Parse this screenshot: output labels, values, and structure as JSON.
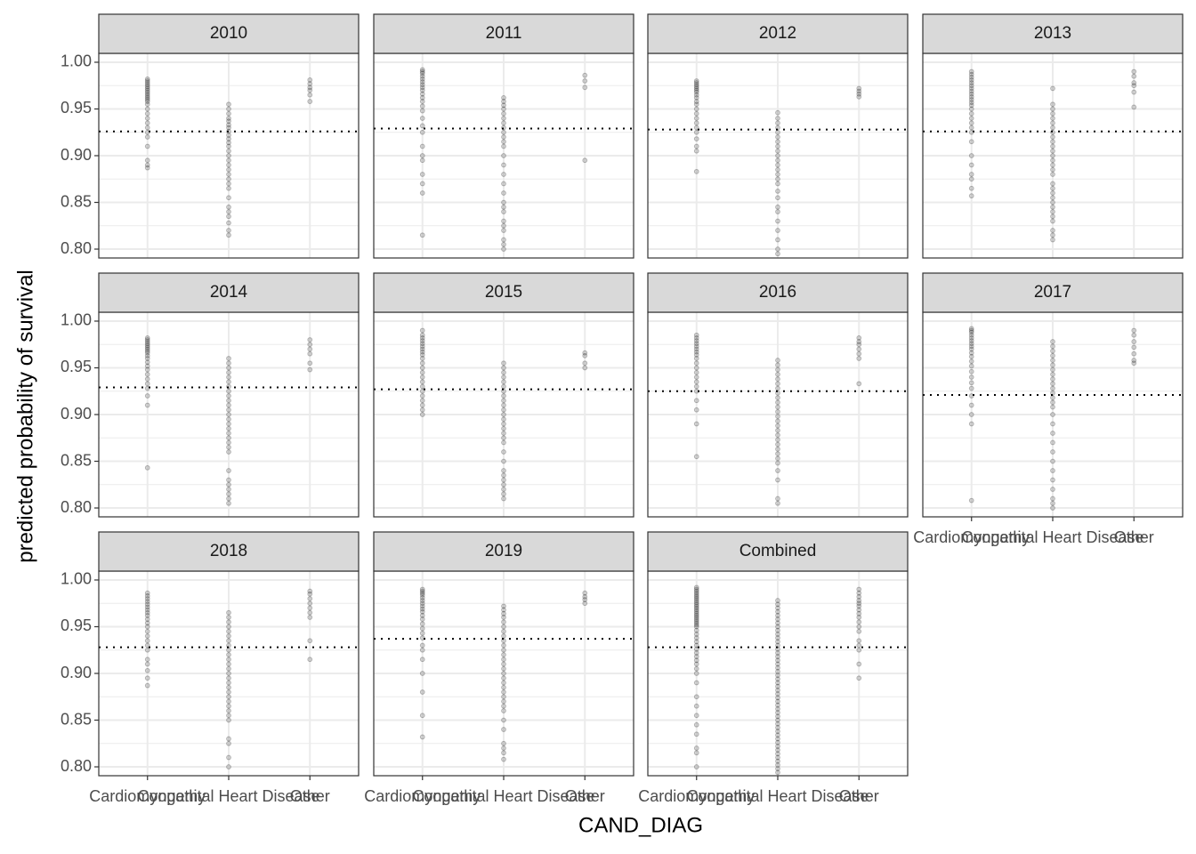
{
  "ylabel": "predicted probability of survival",
  "xlabel": "CAND_DIAG",
  "categories": [
    "Cardiomyopathy",
    "Congenital Heart Disease",
    "Other"
  ],
  "ylim": [
    0.7905,
    1.0095
  ],
  "yticks": [
    {
      "value": 0.8,
      "label": "0.80"
    },
    0.85,
    {
      "value": 0.9,
      "label": "0.90"
    },
    0.95,
    {
      "value": 1.0,
      "label": "1.00"
    }
  ],
  "y_minor_ticks": [
    0.825,
    0.875,
    0.925,
    0.975
  ],
  "chart_data": [
    {
      "type": "strip",
      "title": "2010",
      "hline": 0.926,
      "values": [
        [
          0.982,
          0.98,
          0.978,
          0.976,
          0.974,
          0.972,
          0.97,
          0.968,
          0.966,
          0.964,
          0.962,
          0.96,
          0.958,
          0.955,
          0.95,
          0.945,
          0.94,
          0.935,
          0.93,
          0.925,
          0.92,
          0.91,
          0.895,
          0.89,
          0.887
        ],
        [
          0.955,
          0.95,
          0.945,
          0.94,
          0.937,
          0.933,
          0.93,
          0.926,
          0.922,
          0.918,
          0.914,
          0.91,
          0.905,
          0.9,
          0.895,
          0.89,
          0.885,
          0.88,
          0.875,
          0.87,
          0.865,
          0.855,
          0.845,
          0.84,
          0.835,
          0.828,
          0.82,
          0.815
        ],
        [
          0.981,
          0.977,
          0.973,
          0.97,
          0.965,
          0.958
        ]
      ]
    },
    {
      "type": "strip",
      "title": "2011",
      "hline": 0.929,
      "values": [
        [
          0.992,
          0.99,
          0.988,
          0.985,
          0.982,
          0.979,
          0.976,
          0.973,
          0.97,
          0.966,
          0.962,
          0.958,
          0.953,
          0.948,
          0.94,
          0.932,
          0.925,
          0.91,
          0.9,
          0.895,
          0.88,
          0.87,
          0.86,
          0.815
        ],
        [
          0.962,
          0.958,
          0.954,
          0.95,
          0.945,
          0.94,
          0.935,
          0.93,
          0.925,
          0.92,
          0.915,
          0.91,
          0.9,
          0.89,
          0.88,
          0.87,
          0.86,
          0.85,
          0.845,
          0.84,
          0.83,
          0.825,
          0.82,
          0.81,
          0.805,
          0.8
        ],
        [
          0.986,
          0.98,
          0.973,
          0.895
        ]
      ]
    },
    {
      "type": "strip",
      "title": "2012",
      "hline": 0.928,
      "values": [
        [
          0.98,
          0.978,
          0.976,
          0.974,
          0.972,
          0.97,
          0.968,
          0.965,
          0.962,
          0.958,
          0.955,
          0.95,
          0.945,
          0.94,
          0.935,
          0.93,
          0.925,
          0.918,
          0.91,
          0.905,
          0.883
        ],
        [
          0.946,
          0.94,
          0.935,
          0.93,
          0.925,
          0.92,
          0.915,
          0.91,
          0.905,
          0.9,
          0.895,
          0.89,
          0.885,
          0.88,
          0.875,
          0.87,
          0.862,
          0.855,
          0.845,
          0.84,
          0.83,
          0.82,
          0.81,
          0.8,
          0.795
        ],
        [
          0.972,
          0.969,
          0.966,
          0.963
        ]
      ]
    },
    {
      "type": "strip",
      "title": "2013",
      "hline": 0.926,
      "values": [
        [
          0.99,
          0.987,
          0.984,
          0.981,
          0.978,
          0.975,
          0.972,
          0.969,
          0.966,
          0.963,
          0.96,
          0.957,
          0.954,
          0.95,
          0.945,
          0.94,
          0.935,
          0.93,
          0.925,
          0.915,
          0.9,
          0.89,
          0.88,
          0.875,
          0.865,
          0.857
        ],
        [
          0.972,
          0.955,
          0.95,
          0.945,
          0.94,
          0.935,
          0.93,
          0.925,
          0.92,
          0.915,
          0.91,
          0.905,
          0.9,
          0.895,
          0.89,
          0.885,
          0.88,
          0.87,
          0.865,
          0.86,
          0.855,
          0.85,
          0.845,
          0.84,
          0.835,
          0.83,
          0.82,
          0.815,
          0.81
        ],
        [
          0.99,
          0.985,
          0.978,
          0.975,
          0.968,
          0.952
        ]
      ]
    },
    {
      "type": "strip",
      "title": "2014",
      "hline": 0.929,
      "values": [
        [
          0.982,
          0.98,
          0.978,
          0.976,
          0.974,
          0.972,
          0.97,
          0.968,
          0.966,
          0.963,
          0.96,
          0.956,
          0.952,
          0.948,
          0.943,
          0.938,
          0.933,
          0.928,
          0.92,
          0.91,
          0.843
        ],
        [
          0.96,
          0.955,
          0.95,
          0.945,
          0.94,
          0.935,
          0.93,
          0.925,
          0.92,
          0.915,
          0.91,
          0.905,
          0.9,
          0.895,
          0.89,
          0.885,
          0.88,
          0.875,
          0.87,
          0.865,
          0.86,
          0.84,
          0.83,
          0.825,
          0.82,
          0.815,
          0.81,
          0.805
        ],
        [
          0.98,
          0.975,
          0.97,
          0.965,
          0.955,
          0.948
        ]
      ]
    },
    {
      "type": "strip",
      "title": "2015",
      "hline": 0.927,
      "values": [
        [
          0.99,
          0.985,
          0.982,
          0.979,
          0.976,
          0.973,
          0.97,
          0.967,
          0.964,
          0.96,
          0.955,
          0.95,
          0.945,
          0.94,
          0.935,
          0.93,
          0.925,
          0.92,
          0.915,
          0.91,
          0.905,
          0.9
        ],
        [
          0.955,
          0.95,
          0.945,
          0.94,
          0.935,
          0.93,
          0.925,
          0.92,
          0.915,
          0.91,
          0.905,
          0.9,
          0.895,
          0.89,
          0.885,
          0.88,
          0.875,
          0.87,
          0.86,
          0.85,
          0.84,
          0.835,
          0.83,
          0.825,
          0.82,
          0.815,
          0.81
        ],
        [
          0.966,
          0.963,
          0.955,
          0.95
        ]
      ]
    },
    {
      "type": "strip",
      "title": "2016",
      "hline": 0.925,
      "values": [
        [
          0.985,
          0.982,
          0.979,
          0.976,
          0.973,
          0.97,
          0.967,
          0.964,
          0.96,
          0.955,
          0.95,
          0.945,
          0.94,
          0.935,
          0.93,
          0.925,
          0.915,
          0.905,
          0.89,
          0.855
        ],
        [
          0.958,
          0.953,
          0.948,
          0.943,
          0.938,
          0.933,
          0.928,
          0.923,
          0.918,
          0.913,
          0.908,
          0.903,
          0.898,
          0.893,
          0.888,
          0.883,
          0.878,
          0.873,
          0.868,
          0.863,
          0.858,
          0.853,
          0.848,
          0.84,
          0.83,
          0.81,
          0.805
        ],
        [
          0.982,
          0.978,
          0.975,
          0.97,
          0.965,
          0.96,
          0.933
        ]
      ]
    },
    {
      "type": "strip",
      "title": "2017",
      "hline": 0.921,
      "values": [
        [
          0.992,
          0.99,
          0.988,
          0.985,
          0.982,
          0.979,
          0.976,
          0.973,
          0.97,
          0.966,
          0.962,
          0.957,
          0.952,
          0.946,
          0.94,
          0.934,
          0.928,
          0.92,
          0.91,
          0.9,
          0.89,
          0.808
        ],
        [
          0.978,
          0.973,
          0.968,
          0.963,
          0.958,
          0.953,
          0.948,
          0.943,
          0.938,
          0.933,
          0.928,
          0.923,
          0.918,
          0.913,
          0.908,
          0.9,
          0.89,
          0.88,
          0.87,
          0.86,
          0.85,
          0.84,
          0.83,
          0.82,
          0.81,
          0.805,
          0.8
        ],
        [
          0.99,
          0.985,
          0.978,
          0.972,
          0.965,
          0.958,
          0.955
        ]
      ]
    },
    {
      "type": "strip",
      "title": "2018",
      "hline": 0.928,
      "values": [
        [
          0.986,
          0.983,
          0.98,
          0.977,
          0.974,
          0.971,
          0.968,
          0.965,
          0.962,
          0.958,
          0.954,
          0.95,
          0.945,
          0.94,
          0.935,
          0.93,
          0.925,
          0.915,
          0.91,
          0.903,
          0.895,
          0.887
        ],
        [
          0.965,
          0.96,
          0.955,
          0.95,
          0.945,
          0.94,
          0.935,
          0.93,
          0.925,
          0.92,
          0.915,
          0.91,
          0.905,
          0.9,
          0.895,
          0.89,
          0.885,
          0.88,
          0.875,
          0.87,
          0.865,
          0.86,
          0.855,
          0.85,
          0.83,
          0.825,
          0.81,
          0.8
        ],
        [
          0.988,
          0.985,
          0.98,
          0.975,
          0.97,
          0.965,
          0.96,
          0.935,
          0.915
        ]
      ]
    },
    {
      "type": "strip",
      "title": "2019",
      "hline": 0.937,
      "values": [
        [
          0.99,
          0.988,
          0.986,
          0.984,
          0.981,
          0.978,
          0.975,
          0.972,
          0.969,
          0.966,
          0.962,
          0.958,
          0.953,
          0.948,
          0.943,
          0.938,
          0.93,
          0.925,
          0.915,
          0.9,
          0.88,
          0.855,
          0.832
        ],
        [
          0.972,
          0.968,
          0.964,
          0.96,
          0.955,
          0.95,
          0.945,
          0.94,
          0.935,
          0.93,
          0.925,
          0.92,
          0.915,
          0.91,
          0.905,
          0.9,
          0.895,
          0.89,
          0.885,
          0.88,
          0.875,
          0.87,
          0.865,
          0.86,
          0.85,
          0.84,
          0.825,
          0.82,
          0.815,
          0.808
        ],
        [
          0.986,
          0.982,
          0.979,
          0.975
        ]
      ]
    },
    {
      "type": "strip",
      "title": "Combined",
      "hline": 0.928,
      "values": [
        [
          0.992,
          0.99,
          0.988,
          0.986,
          0.984,
          0.982,
          0.98,
          0.978,
          0.976,
          0.974,
          0.972,
          0.97,
          0.968,
          0.966,
          0.964,
          0.962,
          0.96,
          0.958,
          0.956,
          0.954,
          0.952,
          0.95,
          0.946,
          0.942,
          0.938,
          0.934,
          0.93,
          0.926,
          0.922,
          0.918,
          0.914,
          0.91,
          0.905,
          0.9,
          0.89,
          0.875,
          0.865,
          0.855,
          0.845,
          0.835,
          0.82,
          0.815,
          0.8
        ],
        [
          0.978,
          0.974,
          0.97,
          0.966,
          0.962,
          0.958,
          0.954,
          0.95,
          0.946,
          0.942,
          0.938,
          0.934,
          0.93,
          0.926,
          0.922,
          0.918,
          0.914,
          0.91,
          0.906,
          0.902,
          0.898,
          0.894,
          0.89,
          0.886,
          0.882,
          0.878,
          0.874,
          0.87,
          0.866,
          0.862,
          0.858,
          0.854,
          0.85,
          0.846,
          0.842,
          0.838,
          0.834,
          0.83,
          0.826,
          0.822,
          0.818,
          0.814,
          0.81,
          0.806,
          0.802,
          0.798,
          0.794
        ],
        [
          0.99,
          0.986,
          0.982,
          0.978,
          0.975,
          0.972,
          0.968,
          0.964,
          0.96,
          0.955,
          0.95,
          0.945,
          0.935,
          0.93,
          0.925,
          0.91,
          0.895
        ]
      ]
    }
  ]
}
